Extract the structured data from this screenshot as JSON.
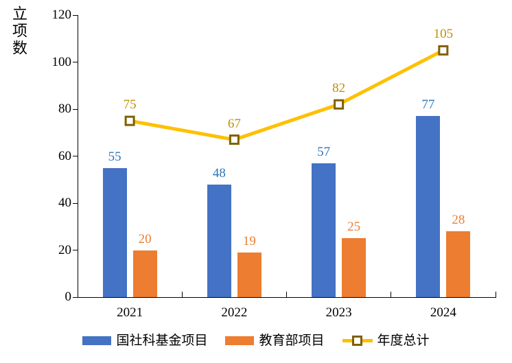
{
  "chart_data": {
    "type": "bar",
    "subtype": "grouped-bars-with-line-overlay",
    "title": "",
    "ylabel": "立项数",
    "xlabel": "",
    "categories": [
      "2021",
      "2022",
      "2023",
      "2024"
    ],
    "series": [
      {
        "name": "国社科基金项目",
        "type": "bar",
        "color": "#4472C4",
        "label_color": "#2E75B6",
        "values": [
          55,
          48,
          57,
          77
        ]
      },
      {
        "name": "教育部项目",
        "type": "bar",
        "color": "#ED7D31",
        "label_color": "#ED7D31",
        "values": [
          20,
          19,
          25,
          28
        ]
      },
      {
        "name": "年度总计",
        "type": "line",
        "color": "#FFC000",
        "marker": "open-square",
        "marker_border_color": "#7F6000",
        "label_color": "#BF9000",
        "values": [
          75,
          67,
          82,
          105
        ]
      }
    ],
    "ylim": [
      0,
      120
    ],
    "ytick_step": 20,
    "yticks": [
      0,
      20,
      40,
      60,
      80,
      100,
      120
    ],
    "grid": false,
    "legend_position": "bottom",
    "axis_color": "#000000",
    "background_color": "#FFFFFF"
  }
}
